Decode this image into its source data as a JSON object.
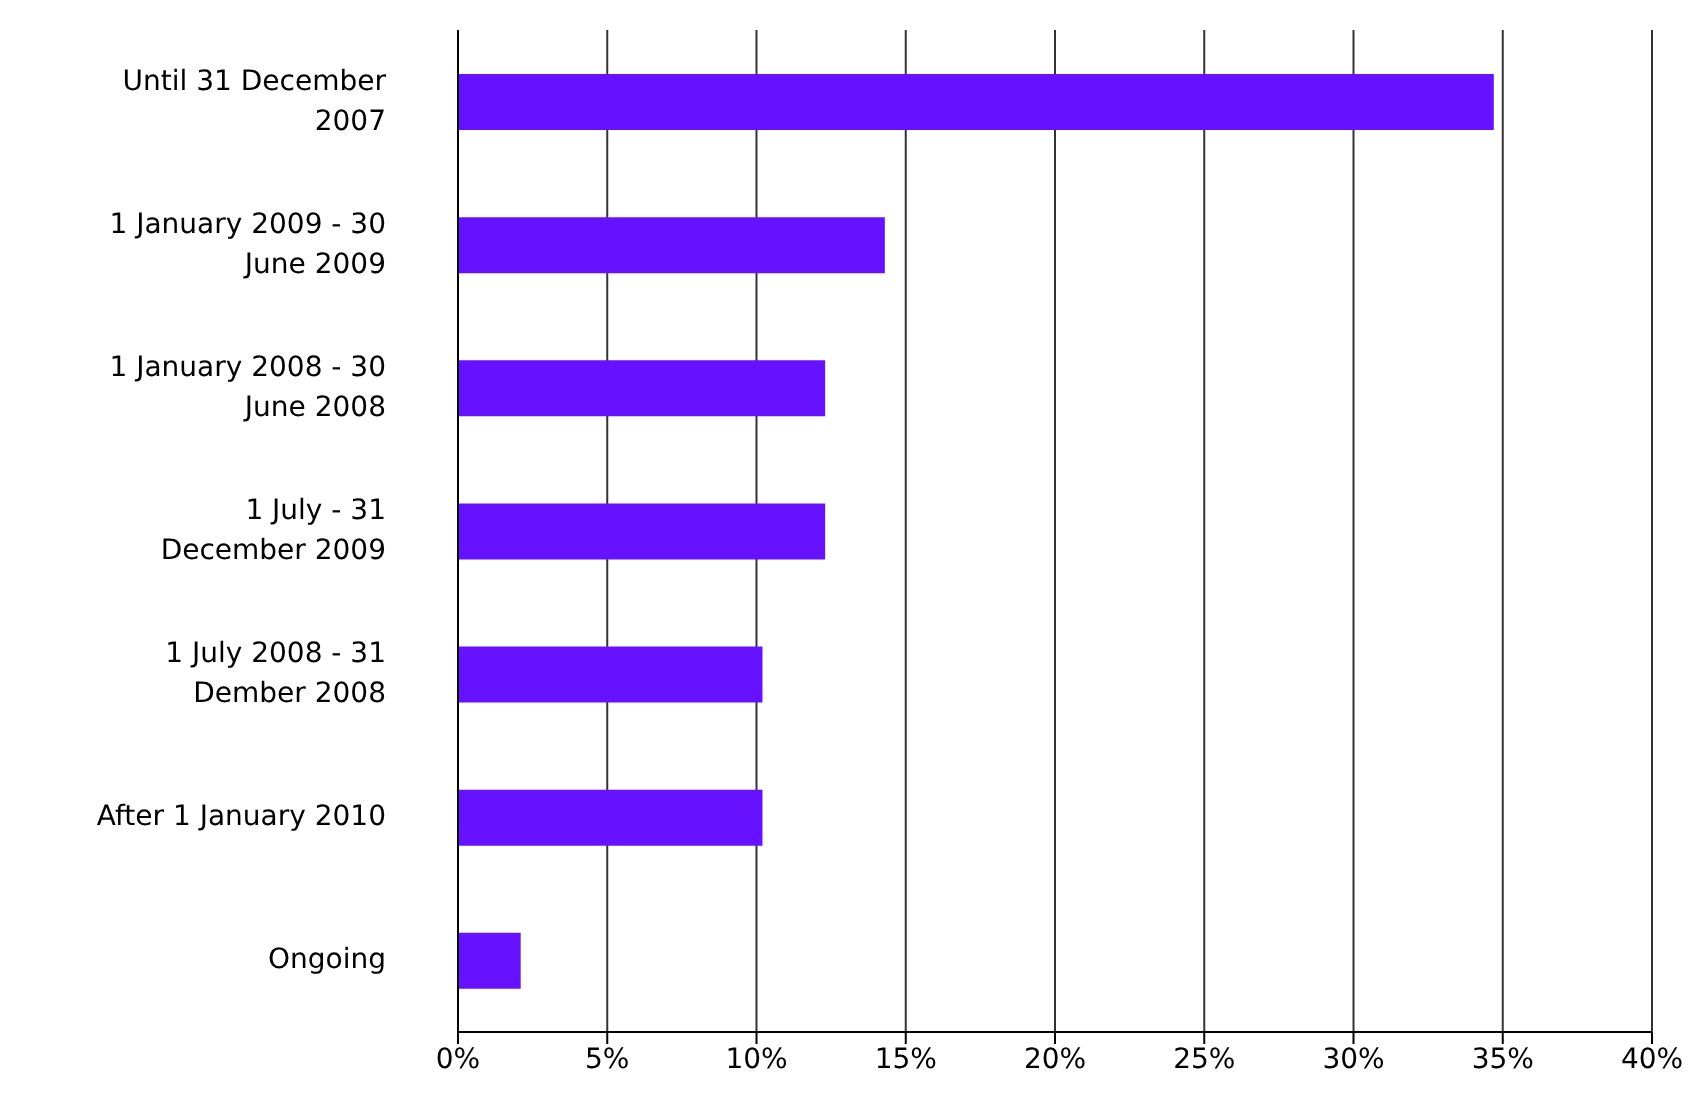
{
  "chart_data": {
    "type": "bar",
    "orientation": "horizontal",
    "categories": [
      "Until 31 December\n2007",
      "1 January 2009 - 30\nJune 2009",
      "1 January 2008 - 30\nJune 2008",
      "1 July - 31\nDecember 2009",
      "1 July 2008 - 31\nDember 2008",
      "After 1 January 2010",
      "Ongoing"
    ],
    "values": [
      34.7,
      14.3,
      12.3,
      12.3,
      10.2,
      10.2,
      2.1
    ],
    "color": "#6611ff",
    "xlim": [
      0,
      40
    ],
    "xticks": [
      {
        "value": 0,
        "label": "0%"
      },
      {
        "value": 5,
        "label": "5%"
      },
      {
        "value": 10,
        "label": "10%"
      },
      {
        "value": 15,
        "label": "15%"
      },
      {
        "value": 20,
        "label": "20%"
      },
      {
        "value": 25,
        "label": "25%"
      },
      {
        "value": 30,
        "label": "30%"
      },
      {
        "value": 35,
        "label": "35%"
      },
      {
        "value": 40,
        "label": "40%"
      }
    ],
    "grid": "x",
    "legend": false
  }
}
